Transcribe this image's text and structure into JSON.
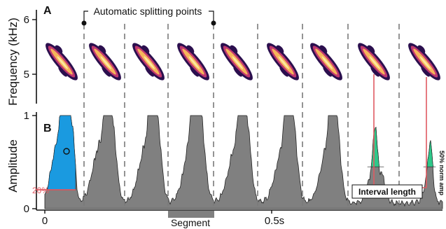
{
  "panels": {
    "a": "A",
    "b": "B"
  },
  "labels": {
    "freq_axis": "Frequency (kHz)",
    "amp_axis": "Amplitude",
    "auto_split": "Automatic splitting points",
    "segment": "Segment",
    "interval": "Interval length",
    "pct20": "20%",
    "norm_amp": "50% norm amp"
  },
  "ticks": {
    "freq_6": "6",
    "freq_5": "5",
    "amp_1": "1",
    "amp_0": "0",
    "time_0": "0",
    "time_05": "0.5s"
  },
  "colors": {
    "envelope": "#808080",
    "highlight_blue": "#1a9ae0",
    "highlight_green": "#2ec88a",
    "marker_red": "#e05a62",
    "spectro_dark": "#2b0f4e",
    "spectro_mid": "#c0386f",
    "spectro_hot": "#f6b55a",
    "spectro_core": "#fde89e"
  }
}
